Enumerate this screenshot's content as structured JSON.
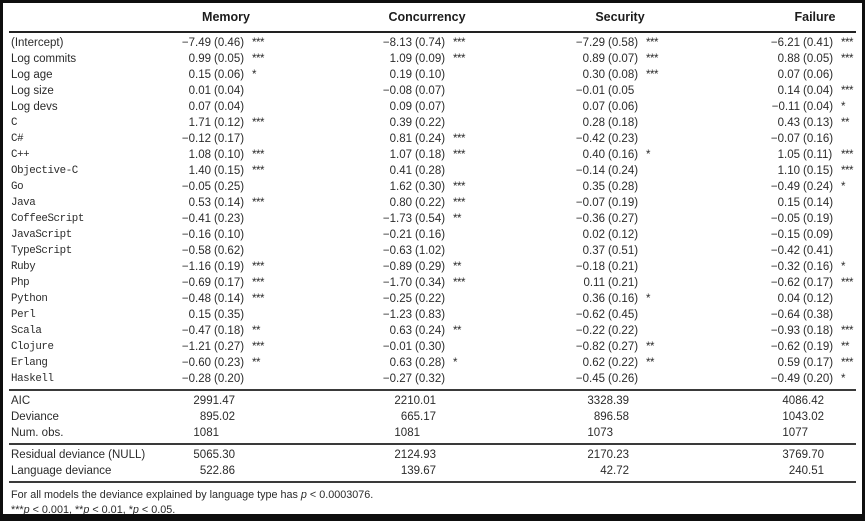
{
  "table": {
    "header": {
      "col0": "",
      "columns": [
        "Memory",
        "Concurrency",
        "Security",
        "Failure"
      ]
    },
    "coef_rows": [
      {
        "label": "(Intercept)",
        "mono": false,
        "cells": [
          {
            "est": "−7.49",
            "se": "(0.46)",
            "stars": "***"
          },
          {
            "est": "−8.13",
            "se": "(0.74)",
            "stars": "***"
          },
          {
            "est": "−7.29",
            "se": "(0.58)",
            "stars": "***"
          },
          {
            "est": "−6.21",
            "se": "(0.41)",
            "stars": "***"
          }
        ]
      },
      {
        "label": "Log commits",
        "mono": false,
        "cells": [
          {
            "est": "0.99",
            "se": "(0.05)",
            "stars": "***"
          },
          {
            "est": "1.09",
            "se": "(0.09)",
            "stars": "***"
          },
          {
            "est": "0.89",
            "se": "(0.07)",
            "stars": "***"
          },
          {
            "est": "0.88",
            "se": "(0.05)",
            "stars": "***"
          }
        ]
      },
      {
        "label": "Log age",
        "mono": false,
        "cells": [
          {
            "est": "0.15",
            "se": "(0.06)",
            "stars": "*"
          },
          {
            "est": "0.19",
            "se": "(0.10)",
            "stars": ""
          },
          {
            "est": "0.30",
            "se": "(0.08)",
            "stars": "***"
          },
          {
            "est": "0.07",
            "se": "(0.06)",
            "stars": ""
          }
        ]
      },
      {
        "label": "Log size",
        "mono": false,
        "cells": [
          {
            "est": "0.01",
            "se": "(0.04)",
            "stars": ""
          },
          {
            "est": "−0.08",
            "se": "(0.07)",
            "stars": ""
          },
          {
            "est": "−0.01",
            "se": "(0.05",
            "stars": ""
          },
          {
            "est": "0.14",
            "se": "(0.04)",
            "stars": "***"
          }
        ]
      },
      {
        "label": "Log devs",
        "mono": false,
        "cells": [
          {
            "est": "0.07",
            "se": "(0.04)",
            "stars": ""
          },
          {
            "est": "0.09",
            "se": "(0.07)",
            "stars": ""
          },
          {
            "est": "0.07",
            "se": "(0.06)",
            "stars": ""
          },
          {
            "est": "−0.11",
            "se": "(0.04)",
            "stars": "*"
          }
        ]
      },
      {
        "label": "C",
        "mono": true,
        "cells": [
          {
            "est": "1.71",
            "se": "(0.12)",
            "stars": "***"
          },
          {
            "est": "0.39",
            "se": "(0.22)",
            "stars": ""
          },
          {
            "est": "0.28",
            "se": "(0.18)",
            "stars": ""
          },
          {
            "est": "0.43",
            "se": "(0.13)",
            "stars": "**"
          }
        ]
      },
      {
        "label": "C#",
        "mono": true,
        "cells": [
          {
            "est": "−0.12",
            "se": "(0.17)",
            "stars": ""
          },
          {
            "est": "0.81",
            "se": "(0.24)",
            "stars": "***"
          },
          {
            "est": "−0.42",
            "se": "(0.23)",
            "stars": ""
          },
          {
            "est": "−0.07",
            "se": "(0.16)",
            "stars": ""
          }
        ]
      },
      {
        "label": "C++",
        "mono": true,
        "cells": [
          {
            "est": "1.08",
            "se": "(0.10)",
            "stars": "***"
          },
          {
            "est": "1.07",
            "se": "(0.18)",
            "stars": "***"
          },
          {
            "est": "0.40",
            "se": "(0.16)",
            "stars": "*"
          },
          {
            "est": "1.05",
            "se": "(0.11)",
            "stars": "***"
          }
        ]
      },
      {
        "label": "Objective-C",
        "mono": true,
        "cells": [
          {
            "est": "1.40",
            "se": "(0.15)",
            "stars": "***"
          },
          {
            "est": "0.41",
            "se": "(0.28)",
            "stars": ""
          },
          {
            "est": "−0.14",
            "se": "(0.24)",
            "stars": ""
          },
          {
            "est": "1.10",
            "se": "(0.15)",
            "stars": "***"
          }
        ]
      },
      {
        "label": "Go",
        "mono": true,
        "cells": [
          {
            "est": "−0.05",
            "se": "(0.25)",
            "stars": ""
          },
          {
            "est": "1.62",
            "se": "(0.30)",
            "stars": "***"
          },
          {
            "est": "0.35",
            "se": "(0.28)",
            "stars": ""
          },
          {
            "est": "−0.49",
            "se": "(0.24)",
            "stars": "*"
          }
        ]
      },
      {
        "label": "Java",
        "mono": true,
        "cells": [
          {
            "est": "0.53",
            "se": "(0.14)",
            "stars": "***"
          },
          {
            "est": "0.80",
            "se": "(0.22)",
            "stars": "***"
          },
          {
            "est": "−0.07",
            "se": "(0.19)",
            "stars": ""
          },
          {
            "est": "0.15",
            "se": "(0.14)",
            "stars": ""
          }
        ]
      },
      {
        "label": "CoffeeScript",
        "mono": true,
        "cells": [
          {
            "est": "−0.41",
            "se": "(0.23)",
            "stars": ""
          },
          {
            "est": "−1.73",
            "se": "(0.54)",
            "stars": "**"
          },
          {
            "est": "−0.36",
            "se": "(0.27)",
            "stars": ""
          },
          {
            "est": "−0.05",
            "se": "(0.19)",
            "stars": ""
          }
        ]
      },
      {
        "label": "JavaScript",
        "mono": true,
        "cells": [
          {
            "est": "−0.16",
            "se": "(0.10)",
            "stars": ""
          },
          {
            "est": "−0.21",
            "se": "(0.16)",
            "stars": ""
          },
          {
            "est": "0.02",
            "se": "(0.12)",
            "stars": ""
          },
          {
            "est": "−0.15",
            "se": "(0.09)",
            "stars": ""
          }
        ]
      },
      {
        "label": "TypeScript",
        "mono": true,
        "cells": [
          {
            "est": "−0.58",
            "se": "(0.62)",
            "stars": ""
          },
          {
            "est": "−0.63",
            "se": "(1.02)",
            "stars": ""
          },
          {
            "est": "0.37",
            "se": "(0.51)",
            "stars": ""
          },
          {
            "est": "−0.42",
            "se": "(0.41)",
            "stars": ""
          }
        ]
      },
      {
        "label": "Ruby",
        "mono": true,
        "cells": [
          {
            "est": "−1.16",
            "se": "(0.19)",
            "stars": "***"
          },
          {
            "est": "−0.89",
            "se": "(0.29)",
            "stars": "**"
          },
          {
            "est": "−0.18",
            "se": "(0.21)",
            "stars": ""
          },
          {
            "est": "−0.32",
            "se": "(0.16)",
            "stars": "*"
          }
        ]
      },
      {
        "label": "Php",
        "mono": true,
        "cells": [
          {
            "est": "−0.69",
            "se": "(0.17)",
            "stars": "***"
          },
          {
            "est": "−1.70",
            "se": "(0.34)",
            "stars": "***"
          },
          {
            "est": "0.11",
            "se": "(0.21)",
            "stars": ""
          },
          {
            "est": "−0.62",
            "se": "(0.17)",
            "stars": "***"
          }
        ]
      },
      {
        "label": "Python",
        "mono": true,
        "cells": [
          {
            "est": "−0.48",
            "se": "(0.14)",
            "stars": "***"
          },
          {
            "est": "−0.25",
            "se": "(0.22)",
            "stars": ""
          },
          {
            "est": "0.36",
            "se": "(0.16)",
            "stars": "*"
          },
          {
            "est": "0.04",
            "se": "(0.12)",
            "stars": ""
          }
        ]
      },
      {
        "label": "Perl",
        "mono": true,
        "cells": [
          {
            "est": "0.15",
            "se": "(0.35)",
            "stars": ""
          },
          {
            "est": "−1.23",
            "se": "(0.83)",
            "stars": ""
          },
          {
            "est": "−0.62",
            "se": "(0.45)",
            "stars": ""
          },
          {
            "est": "−0.64",
            "se": "(0.38)",
            "stars": ""
          }
        ]
      },
      {
        "label": "Scala",
        "mono": true,
        "cells": [
          {
            "est": "−0.47",
            "se": "(0.18)",
            "stars": "**"
          },
          {
            "est": "0.63",
            "se": "(0.24)",
            "stars": "**"
          },
          {
            "est": "−0.22",
            "se": "(0.22)",
            "stars": ""
          },
          {
            "est": "−0.93",
            "se": "(0.18)",
            "stars": "***"
          }
        ]
      },
      {
        "label": "Clojure",
        "mono": true,
        "cells": [
          {
            "est": "−1.21",
            "se": "(0.27)",
            "stars": "***"
          },
          {
            "est": "−0.01",
            "se": "(0.30)",
            "stars": ""
          },
          {
            "est": "−0.82",
            "se": "(0.27)",
            "stars": "**"
          },
          {
            "est": "−0.62",
            "se": "(0.19)",
            "stars": "**"
          }
        ]
      },
      {
        "label": "Erlang",
        "mono": true,
        "cells": [
          {
            "est": "−0.60",
            "se": "(0.23)",
            "stars": "**"
          },
          {
            "est": "0.63",
            "se": "(0.28)",
            "stars": "*"
          },
          {
            "est": "0.62",
            "se": "(0.22)",
            "stars": "**"
          },
          {
            "est": "0.59",
            "se": "(0.17)",
            "stars": "***"
          }
        ]
      },
      {
        "label": "Haskell",
        "mono": true,
        "cells": [
          {
            "est": "−0.28",
            "se": "(0.20)",
            "stars": ""
          },
          {
            "est": "−0.27",
            "se": "(0.32)",
            "stars": ""
          },
          {
            "est": "−0.45",
            "se": "(0.26)",
            "stars": ""
          },
          {
            "est": "−0.49",
            "se": "(0.20)",
            "stars": "*"
          }
        ]
      }
    ],
    "stats_mid": [
      {
        "label": "AIC",
        "values": [
          "2991.47",
          "2210.01",
          "3328.39",
          "4086.42"
        ]
      },
      {
        "label": "Deviance",
        "values": [
          "895.02",
          "665.17",
          "896.58",
          "1043.02"
        ]
      },
      {
        "label": "Num. obs.",
        "values": [
          "1081",
          "1081",
          "1073",
          "1077"
        ]
      }
    ],
    "stats_bottom": [
      {
        "label": "Residual deviance (NULL)",
        "values": [
          "5065.30",
          "2124.93",
          "2170.23",
          "3769.70"
        ]
      },
      {
        "label": "Language deviance",
        "values": [
          "522.86",
          "139.67",
          "42.72",
          "240.51"
        ]
      }
    ],
    "footnotes": [
      [
        {
          "t": "For all models the deviance explained by language type has "
        },
        {
          "t": "p",
          "i": true
        },
        {
          "t": " < 0.0003076."
        }
      ],
      [
        {
          "t": "***"
        },
        {
          "t": "p",
          "i": true
        },
        {
          "t": " < 0.001, **"
        },
        {
          "t": "p",
          "i": true
        },
        {
          "t": " < 0.01, *"
        },
        {
          "t": "p",
          "i": true
        },
        {
          "t": " < 0.05."
        }
      ]
    ]
  }
}
